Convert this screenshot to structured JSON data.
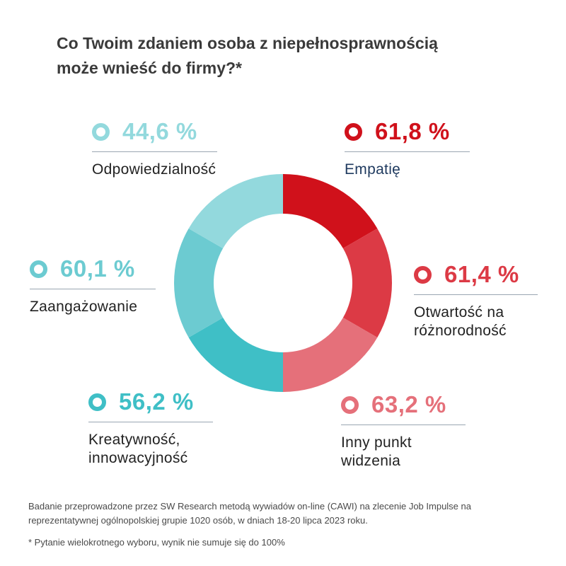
{
  "title_lines": [
    "Co Twoim zdaniem osoba z niepełnosprawnością",
    "może wnieść do firmy?*"
  ],
  "chart_data": {
    "type": "pie",
    "donut": true,
    "title": "Co Twoim zdaniem osoba z niepełnosprawnością może wnieść do firmy?*",
    "unit": "%",
    "categories": [
      "Empatię",
      "Otwartość na różnorodność",
      "Inny punkt widzenia",
      "Kreatywność, innowacyjność",
      "Zaangażowanie",
      "Odpowiedzialność"
    ],
    "values": [
      61.8,
      61.4,
      63.2,
      56.2,
      60.1,
      44.6
    ],
    "value_labels": [
      "61,8 %",
      "61,4 %",
      "63,2 %",
      "56,2 %",
      "60,1 %",
      "44,6 %"
    ],
    "label_lines": [
      [
        "Empatię"
      ],
      [
        "Otwartość na",
        "różnorodność"
      ],
      [
        "Inny punkt",
        "widzenia"
      ],
      [
        "Kreatywność,",
        "innowacyjność"
      ],
      [
        "Zaangażowanie"
      ],
      [
        "Odpowiedzialność"
      ]
    ],
    "colors": [
      "#d0111b",
      "#dc3a45",
      "#e5707a",
      "#3fbfc6",
      "#6ccbd1",
      "#93d9dd"
    ],
    "value_colors": [
      "#d0111b",
      "#dc3a45",
      "#e5707a",
      "#3fbfc6",
      "#6ccbd1",
      "#93d9dd"
    ],
    "label_colors": [
      "#1f3a5f",
      "#222222",
      "#222222",
      "#222222",
      "#222222",
      "#222222"
    ]
  },
  "footnote_lines": [
    "Badanie przeprowadzone przez SW Research metodą wywiadów on-line (CAWI) na zlecenie Job Impulse na",
    "reprezentatywnej ogólnopolskiej grupie 1020 osób, w dniach 18-20 lipca 2023 roku."
  ],
  "footnote_star": "* Pytanie wielokrotnego wyboru, wynik nie sumuje się do 100%"
}
